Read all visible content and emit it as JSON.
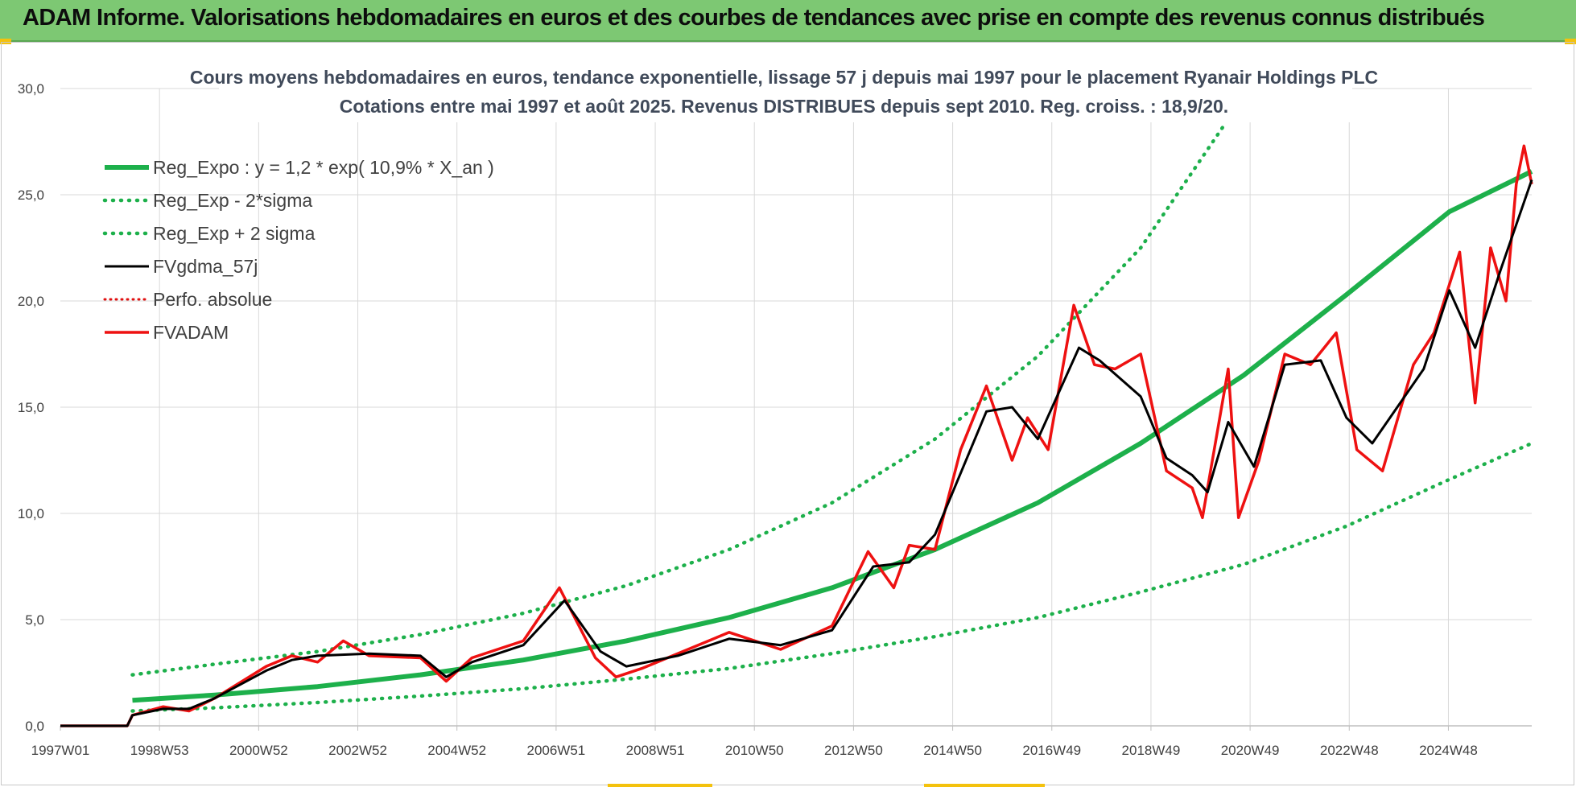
{
  "header": {
    "title": "ADAM Informe. Valorisations hebdomadaires en euros et des courbes de tendances avec prise en compte des revenus connus distribués"
  },
  "chart_data": {
    "type": "line",
    "title_line1": "Cours moyens hebdomadaires en euros, tendance exponentielle, lissage 57 j depuis mai 1997 pour le placement Ryanair Holdings PLC",
    "title_line2": "Cotations entre mai 1997 et août 2025.  Revenus DISTRIBUES depuis sept 2010.  Reg. croiss. : 18,9/20.",
    "xlabel": "",
    "ylabel": "",
    "ylim": [
      0,
      30
    ],
    "xlim": [
      1997.0,
      2025.6
    ],
    "y_ticks": [
      "0,0",
      "5,0",
      "10,0",
      "15,0",
      "20,0",
      "25,0",
      "30,0"
    ],
    "x_tick_labels": [
      "1997W01",
      "1998W53",
      "2000W52",
      "2002W52",
      "2004W52",
      "2006W51",
      "2008W51",
      "2010W50",
      "2012W50",
      "2014W50",
      "2016W49",
      "2018W49",
      "2020W49",
      "2022W48",
      "2024W48"
    ],
    "grid": true,
    "legend_position": "top-left",
    "colors": {
      "reg_expo": "#1db04b",
      "fvgdma": "#000000",
      "perfo": "#e01010",
      "fvadam": "#ee1111",
      "grid": "#d9d9d9"
    },
    "series": [
      {
        "name": "Reg_Expo : y = 1,2 * exp( 10,9% *  X_an )",
        "style": "solid-green",
        "x": [
          1998.4,
          2000,
          2002,
          2004,
          2006,
          2008,
          2010,
          2012,
          2013,
          2014,
          2016,
          2018,
          2020,
          2022,
          2024,
          2025.6
        ],
        "values": [
          1.2,
          1.45,
          1.85,
          2.4,
          3.1,
          4.0,
          5.1,
          6.5,
          7.4,
          8.3,
          10.5,
          13.3,
          16.5,
          20.3,
          24.2,
          26.1
        ]
      },
      {
        "name": "Reg_Exp - 2*sigma",
        "style": "dotted-green",
        "x": [
          1998.4,
          2000,
          2002,
          2004,
          2006,
          2008,
          2010,
          2012,
          2014,
          2016,
          2018,
          2020,
          2022,
          2024,
          2025.6
        ],
        "values": [
          0.7,
          0.85,
          1.1,
          1.4,
          1.75,
          2.2,
          2.7,
          3.4,
          4.2,
          5.1,
          6.3,
          7.6,
          9.4,
          11.6,
          13.3
        ]
      },
      {
        "name": "Reg_Exp + 2 sigma",
        "style": "dotted-green",
        "x": [
          1998.4,
          2000,
          2002,
          2004,
          2006,
          2008,
          2010,
          2012,
          2014,
          2016,
          2018,
          2019.6
        ],
        "values": [
          2.4,
          2.9,
          3.5,
          4.3,
          5.3,
          6.6,
          8.3,
          10.5,
          13.5,
          17.4,
          22.5,
          28.2
        ]
      },
      {
        "name": "FVgdma_57j",
        "style": "solid-black",
        "x": [
          1997.0,
          1998.3,
          1998.4,
          1999.0,
          1999.5,
          2000.0,
          2001.0,
          2001.5,
          2002.0,
          2003.0,
          2004.0,
          2004.5,
          2005.0,
          2006.0,
          2006.8,
          2007.5,
          2008.0,
          2009.0,
          2010.0,
          2011.0,
          2012.0,
          2012.8,
          2013.5,
          2014.0,
          2015.0,
          2015.5,
          2016.0,
          2016.8,
          2017.2,
          2018.0,
          2018.5,
          2019.0,
          2019.3,
          2019.7,
          2020.2,
          2020.8,
          2021.5,
          2022.0,
          2022.5,
          2023.5,
          2024.0,
          2024.5,
          2025.0,
          2025.6
        ],
        "values": [
          0.0,
          0.0,
          0.5,
          0.8,
          0.8,
          1.3,
          2.6,
          3.1,
          3.3,
          3.4,
          3.3,
          2.3,
          3.0,
          3.8,
          5.9,
          3.5,
          2.8,
          3.3,
          4.1,
          3.8,
          4.5,
          7.5,
          7.7,
          9.0,
          14.8,
          15.0,
          13.5,
          17.8,
          17.2,
          15.5,
          12.6,
          11.8,
          11.0,
          14.3,
          12.2,
          17.0,
          17.2,
          14.5,
          13.3,
          16.8,
          20.5,
          17.8,
          21.5,
          25.7
        ]
      },
      {
        "name": "Perfo. absolue",
        "style": "dotted-red",
        "x": [],
        "values": []
      },
      {
        "name": "FVADAM",
        "style": "solid-red",
        "x": [
          1997.0,
          1998.3,
          1998.4,
          1999.0,
          1999.5,
          2000.0,
          2001.0,
          2001.5,
          2002.0,
          2002.5,
          2003.0,
          2004.0,
          2004.5,
          2005.0,
          2006.0,
          2006.7,
          2007.4,
          2007.8,
          2008.3,
          2009.0,
          2010.0,
          2011.0,
          2012.0,
          2012.7,
          2013.2,
          2013.5,
          2014.0,
          2014.5,
          2015.0,
          2015.5,
          2015.8,
          2016.2,
          2016.7,
          2017.1,
          2017.5,
          2018.0,
          2018.5,
          2019.0,
          2019.2,
          2019.5,
          2019.7,
          2019.9,
          2020.3,
          2020.8,
          2021.3,
          2021.8,
          2022.2,
          2022.7,
          2023.3,
          2023.7,
          2024.2,
          2024.5,
          2024.8,
          2025.1,
          2025.3,
          2025.45,
          2025.6
        ],
        "values": [
          0.0,
          0.0,
          0.5,
          0.9,
          0.7,
          1.3,
          2.8,
          3.3,
          3.0,
          4.0,
          3.3,
          3.2,
          2.1,
          3.2,
          4.0,
          6.5,
          3.2,
          2.3,
          2.7,
          3.4,
          4.4,
          3.6,
          4.7,
          8.2,
          6.5,
          8.5,
          8.3,
          13.0,
          16.0,
          12.5,
          14.5,
          13.0,
          19.8,
          17.0,
          16.8,
          17.5,
          12.0,
          11.2,
          9.8,
          14.0,
          16.8,
          9.8,
          12.5,
          17.5,
          17.0,
          18.5,
          13.0,
          12.0,
          17.0,
          18.5,
          22.3,
          15.2,
          22.5,
          20.0,
          25.5,
          27.3,
          25.5
        ]
      }
    ]
  }
}
